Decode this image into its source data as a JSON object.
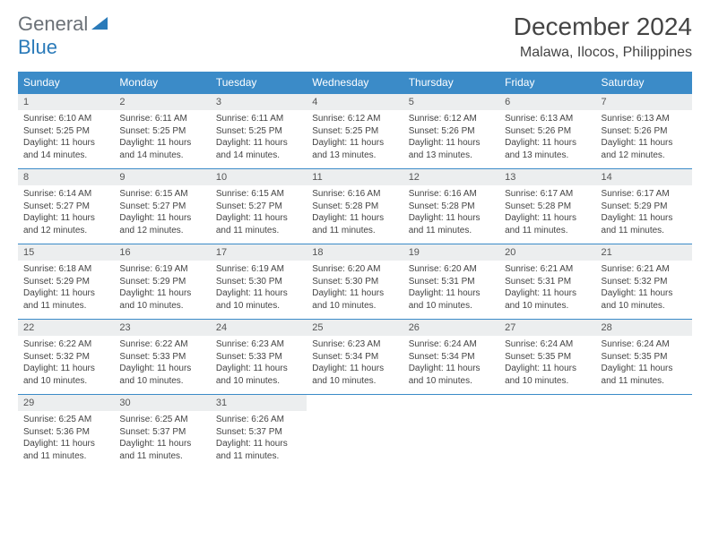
{
  "logo": {
    "text1": "General",
    "text2": "Blue",
    "iconColor": "#2a7ab9"
  },
  "title": "December 2024",
  "location": "Malawa, Ilocos, Philippines",
  "colors": {
    "headerBg": "#3b8bc8",
    "headerFg": "#ffffff",
    "dayNumBg": "#eceeef",
    "border": "#3b8bc8"
  },
  "dayNames": [
    "Sunday",
    "Monday",
    "Tuesday",
    "Wednesday",
    "Thursday",
    "Friday",
    "Saturday"
  ],
  "weeks": [
    [
      {
        "n": "1",
        "sr": "6:10 AM",
        "ss": "5:25 PM",
        "dl": "11 hours and 14 minutes."
      },
      {
        "n": "2",
        "sr": "6:11 AM",
        "ss": "5:25 PM",
        "dl": "11 hours and 14 minutes."
      },
      {
        "n": "3",
        "sr": "6:11 AM",
        "ss": "5:25 PM",
        "dl": "11 hours and 14 minutes."
      },
      {
        "n": "4",
        "sr": "6:12 AM",
        "ss": "5:25 PM",
        "dl": "11 hours and 13 minutes."
      },
      {
        "n": "5",
        "sr": "6:12 AM",
        "ss": "5:26 PM",
        "dl": "11 hours and 13 minutes."
      },
      {
        "n": "6",
        "sr": "6:13 AM",
        "ss": "5:26 PM",
        "dl": "11 hours and 13 minutes."
      },
      {
        "n": "7",
        "sr": "6:13 AM",
        "ss": "5:26 PM",
        "dl": "11 hours and 12 minutes."
      }
    ],
    [
      {
        "n": "8",
        "sr": "6:14 AM",
        "ss": "5:27 PM",
        "dl": "11 hours and 12 minutes."
      },
      {
        "n": "9",
        "sr": "6:15 AM",
        "ss": "5:27 PM",
        "dl": "11 hours and 12 minutes."
      },
      {
        "n": "10",
        "sr": "6:15 AM",
        "ss": "5:27 PM",
        "dl": "11 hours and 11 minutes."
      },
      {
        "n": "11",
        "sr": "6:16 AM",
        "ss": "5:28 PM",
        "dl": "11 hours and 11 minutes."
      },
      {
        "n": "12",
        "sr": "6:16 AM",
        "ss": "5:28 PM",
        "dl": "11 hours and 11 minutes."
      },
      {
        "n": "13",
        "sr": "6:17 AM",
        "ss": "5:28 PM",
        "dl": "11 hours and 11 minutes."
      },
      {
        "n": "14",
        "sr": "6:17 AM",
        "ss": "5:29 PM",
        "dl": "11 hours and 11 minutes."
      }
    ],
    [
      {
        "n": "15",
        "sr": "6:18 AM",
        "ss": "5:29 PM",
        "dl": "11 hours and 11 minutes."
      },
      {
        "n": "16",
        "sr": "6:19 AM",
        "ss": "5:29 PM",
        "dl": "11 hours and 10 minutes."
      },
      {
        "n": "17",
        "sr": "6:19 AM",
        "ss": "5:30 PM",
        "dl": "11 hours and 10 minutes."
      },
      {
        "n": "18",
        "sr": "6:20 AM",
        "ss": "5:30 PM",
        "dl": "11 hours and 10 minutes."
      },
      {
        "n": "19",
        "sr": "6:20 AM",
        "ss": "5:31 PM",
        "dl": "11 hours and 10 minutes."
      },
      {
        "n": "20",
        "sr": "6:21 AM",
        "ss": "5:31 PM",
        "dl": "11 hours and 10 minutes."
      },
      {
        "n": "21",
        "sr": "6:21 AM",
        "ss": "5:32 PM",
        "dl": "11 hours and 10 minutes."
      }
    ],
    [
      {
        "n": "22",
        "sr": "6:22 AM",
        "ss": "5:32 PM",
        "dl": "11 hours and 10 minutes."
      },
      {
        "n": "23",
        "sr": "6:22 AM",
        "ss": "5:33 PM",
        "dl": "11 hours and 10 minutes."
      },
      {
        "n": "24",
        "sr": "6:23 AM",
        "ss": "5:33 PM",
        "dl": "11 hours and 10 minutes."
      },
      {
        "n": "25",
        "sr": "6:23 AM",
        "ss": "5:34 PM",
        "dl": "11 hours and 10 minutes."
      },
      {
        "n": "26",
        "sr": "6:24 AM",
        "ss": "5:34 PM",
        "dl": "11 hours and 10 minutes."
      },
      {
        "n": "27",
        "sr": "6:24 AM",
        "ss": "5:35 PM",
        "dl": "11 hours and 10 minutes."
      },
      {
        "n": "28",
        "sr": "6:24 AM",
        "ss": "5:35 PM",
        "dl": "11 hours and 11 minutes."
      }
    ],
    [
      {
        "n": "29",
        "sr": "6:25 AM",
        "ss": "5:36 PM",
        "dl": "11 hours and 11 minutes."
      },
      {
        "n": "30",
        "sr": "6:25 AM",
        "ss": "5:37 PM",
        "dl": "11 hours and 11 minutes."
      },
      {
        "n": "31",
        "sr": "6:26 AM",
        "ss": "5:37 PM",
        "dl": "11 hours and 11 minutes."
      },
      null,
      null,
      null,
      null
    ]
  ],
  "labels": {
    "sunrise": "Sunrise:",
    "sunset": "Sunset:",
    "daylight": "Daylight:"
  }
}
